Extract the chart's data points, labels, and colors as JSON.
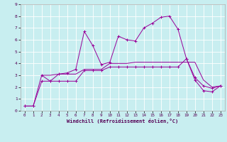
{
  "xlabel": "Windchill (Refroidissement éolien,°C)",
  "bg_color": "#c8eef0",
  "grid_color": "#ffffff",
  "line_color": "#990099",
  "xlim": [
    -0.5,
    23.5
  ],
  "ylim": [
    0,
    9
  ],
  "xticks": [
    0,
    1,
    2,
    3,
    4,
    5,
    6,
    7,
    8,
    9,
    10,
    11,
    12,
    13,
    14,
    15,
    16,
    17,
    18,
    19,
    20,
    21,
    22,
    23
  ],
  "yticks": [
    0,
    1,
    2,
    3,
    4,
    5,
    6,
    7,
    8,
    9
  ],
  "series1_x": [
    0,
    1,
    2,
    3,
    4,
    5,
    6,
    7,
    8,
    9,
    10,
    11,
    12,
    13,
    14,
    15,
    16,
    17,
    18,
    19,
    20,
    21,
    22,
    23
  ],
  "series1_y": [
    0.4,
    0.4,
    3.0,
    2.5,
    3.1,
    3.2,
    3.5,
    6.7,
    5.5,
    3.9,
    4.1,
    6.3,
    6.0,
    5.9,
    7.0,
    7.4,
    7.9,
    8.0,
    6.9,
    4.4,
    2.6,
    1.7,
    1.6,
    2.1
  ],
  "series2_x": [
    0,
    1,
    2,
    3,
    4,
    5,
    6,
    7,
    8,
    9,
    10,
    11,
    12,
    13,
    14,
    15,
    16,
    17,
    18,
    19,
    20,
    21,
    22,
    23
  ],
  "series2_y": [
    0.4,
    0.4,
    2.5,
    2.5,
    2.5,
    2.5,
    2.5,
    3.4,
    3.4,
    3.4,
    3.7,
    3.7,
    3.7,
    3.7,
    3.7,
    3.7,
    3.7,
    3.7,
    3.7,
    4.4,
    2.8,
    2.1,
    1.9,
    2.1
  ],
  "series3_x": [
    2,
    3,
    4,
    5,
    6,
    7,
    8,
    9,
    10,
    11,
    12,
    13,
    14,
    15,
    16,
    17,
    18,
    19,
    20,
    21,
    22,
    23
  ],
  "series3_y": [
    3.0,
    3.0,
    3.1,
    3.1,
    3.1,
    3.5,
    3.5,
    3.5,
    4.0,
    4.0,
    4.0,
    4.1,
    4.1,
    4.1,
    4.1,
    4.1,
    4.1,
    4.1,
    4.1,
    2.6,
    2.0,
    2.1
  ]
}
